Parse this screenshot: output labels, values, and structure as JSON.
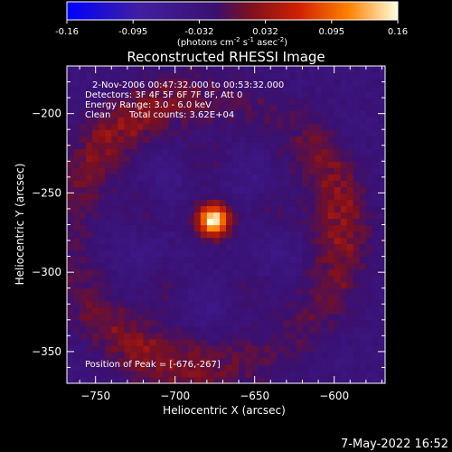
{
  "chart_data": {
    "type": "heatmap",
    "title": "Reconstructed RHESSI Image",
    "xlabel": "Heliocentric X (arcsec)",
    "ylabel": "Heliocentric Y (arcsec)",
    "xlim": [
      -768,
      -568
    ],
    "ylim": [
      -370,
      -170
    ],
    "xticks": [
      -750,
      -700,
      -650,
      -600
    ],
    "yticks": [
      -350,
      -300,
      -250,
      -200
    ],
    "colorbar": {
      "ticks": [
        "-0.16",
        "-0.095",
        "-0.032",
        "0.032",
        "0.095",
        "0.16"
      ],
      "range": [
        -0.16,
        0.16
      ],
      "unit_parts": [
        "(photons cm",
        "-2",
        " s",
        "-1",
        " asec",
        "-2",
        ")"
      ]
    },
    "annotations": {
      "time_range": "2-Nov-2006 00:47:32.000 to 00:53:32.000",
      "detectors": "Detectors: 3F 4F 5F 6F 7F 8F, Att 0",
      "energy_range": "Energy Range: 3.0 - 6.0 keV",
      "clean": "Clean",
      "total_counts": "Total counts: 3.62E+04",
      "peak": "Position of Peak = [-676,-267]"
    },
    "image_features": {
      "peak_position": [
        -676,
        -267
      ],
      "peak_value": 0.16,
      "ring_center": [
        -680,
        -275
      ],
      "ring_radius_arcsec": 85,
      "ring_intensity": 0.05,
      "background": -0.03
    }
  },
  "footer": {
    "date": "7-May-2022 16:52"
  }
}
